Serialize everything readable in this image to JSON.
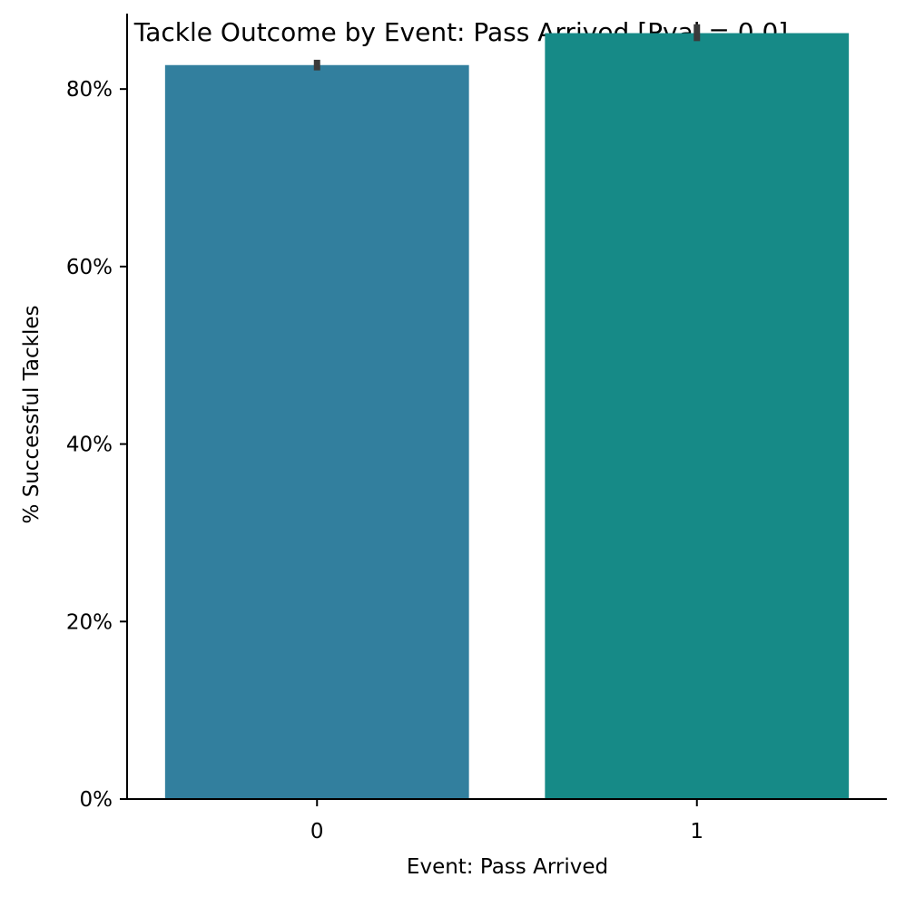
{
  "chart_data": {
    "type": "bar",
    "title": "Tackle Outcome by Event: Pass Arrived [Pval = 0.0]",
    "xlabel": "Event: Pass Arrived",
    "ylabel": "% Successful Tackles",
    "categories": [
      "0",
      "1"
    ],
    "values": [
      82.7,
      86.3
    ],
    "error_bars": [
      {
        "low": 82.1,
        "high": 83.3
      },
      {
        "low": 85.4,
        "high": 87.3
      }
    ],
    "ylim": [
      0,
      88.5
    ],
    "yticks": [
      0,
      20,
      40,
      60,
      80
    ],
    "ytick_labels": [
      "0%",
      "20%",
      "40%",
      "60%",
      "80%"
    ],
    "grid": false,
    "legend": "none",
    "bar_colors": [
      "#327f9e",
      "#168a87"
    ],
    "errorbar_color": "#3a3a3a",
    "axis_color": "#000000"
  }
}
